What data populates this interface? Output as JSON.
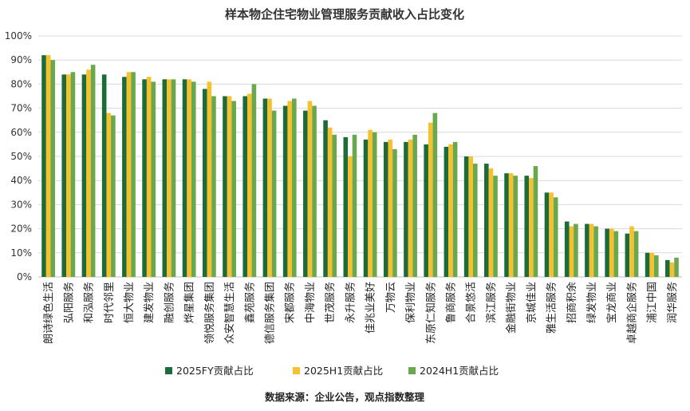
{
  "chart_data": {
    "type": "bar",
    "title": "样本物企住宅物业管理服务贡献收入占比变化",
    "source": "数据来源：企业公告，观点指数整理",
    "ylim": [
      0,
      100
    ],
    "yticks": [
      "0%",
      "10%",
      "20%",
      "30%",
      "40%",
      "50%",
      "60%",
      "70%",
      "80%",
      "90%",
      "100%"
    ],
    "grid": true,
    "legend_position": "bottom",
    "categories": [
      "朗诗绿色生活",
      "弘阳服务",
      "和泓服务",
      "时代邻里",
      "恒大物业",
      "建发物业",
      "融创服务",
      "烨星集团",
      "领悦服务集团",
      "众安智慧生活",
      "鑫苑服务",
      "德信服务集团",
      "宋都服务",
      "中海物业",
      "世茂服务",
      "永升服务",
      "佳兆业美好",
      "万物云",
      "保利物业",
      "东原仁知服务",
      "鲁商服务",
      "合景悠活",
      "滨江服务",
      "金融街物业",
      "京城佳业",
      "雅生活服务",
      "招商积余",
      "绿发物业",
      "宝龙商业",
      "卓越商企服务",
      "浦江中国",
      "润华服务"
    ],
    "series": [
      {
        "name": "2025FY贡献占比",
        "color": "#1e6b3a",
        "values": [
          92,
          84,
          84,
          84,
          83,
          82,
          82,
          82,
          78,
          75,
          75,
          74,
          71,
          69,
          65,
          58,
          57,
          56,
          56,
          55,
          54,
          50,
          47,
          43,
          42,
          35,
          23,
          22,
          20,
          18,
          10,
          7
        ]
      },
      {
        "name": "2025H1贡献占比",
        "color": "#f5c12e",
        "values": [
          92,
          84,
          86,
          68,
          85,
          83,
          82,
          82,
          81,
          75,
          76,
          74,
          73,
          73,
          62,
          50,
          61,
          57,
          57,
          64,
          55,
          50,
          45,
          43,
          41,
          35,
          21,
          22,
          20,
          21,
          10,
          6
        ]
      },
      {
        "name": "2024H1贡献占比",
        "color": "#6aa84f",
        "values": [
          90,
          85,
          88,
          67,
          85,
          81,
          82,
          81,
          75,
          73,
          80,
          69,
          74,
          71,
          59,
          59,
          60,
          53,
          59,
          68,
          56,
          47,
          42,
          42,
          46,
          33,
          22,
          21,
          19,
          19,
          9,
          8
        ]
      }
    ]
  }
}
